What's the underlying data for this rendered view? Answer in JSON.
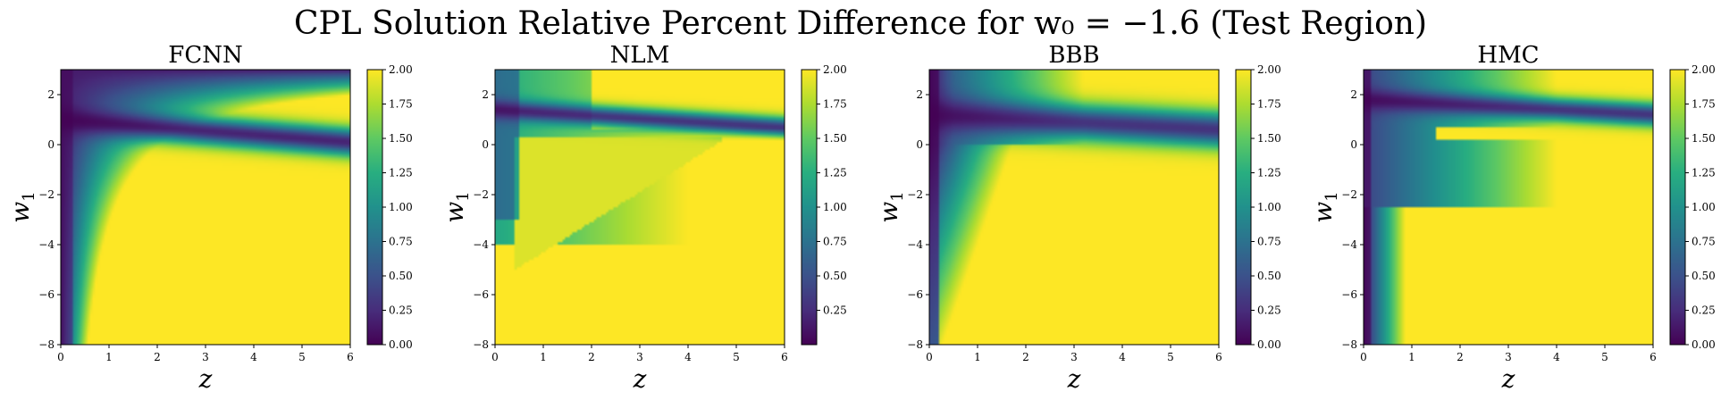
{
  "figure": {
    "suptitle": "CPL Solution Relative Percent Difference for w₀ = −1.6 (Test Region)"
  },
  "chart_data": [
    {
      "type": "heatmap",
      "title": "FCNN",
      "xlabel": "z",
      "ylabel": "w",
      "ylabel_sub": "1",
      "xlim": [
        0,
        6
      ],
      "ylim": [
        -8,
        3
      ],
      "xticks": [
        "0",
        "1",
        "2",
        "3",
        "4",
        "5",
        "6"
      ],
      "yticks": [
        "2",
        "0",
        "−2",
        "−4",
        "−6",
        "−8"
      ],
      "colorbar": {
        "vmin": 0.0,
        "vmax": 2.0,
        "ticks": [
          "2.00",
          "1.75",
          "1.50",
          "1.25",
          "1.00",
          "0.75",
          "0.50",
          "0.25",
          "0.00"
        ]
      },
      "colormap": "viridis",
      "description_low_error_band_w1": 1.0
    },
    {
      "type": "heatmap",
      "title": "NLM",
      "xlabel": "z",
      "ylabel": "w",
      "ylabel_sub": "1",
      "xlim": [
        0,
        6
      ],
      "ylim": [
        -8,
        3
      ],
      "xticks": [
        "0",
        "1",
        "2",
        "3",
        "4",
        "5",
        "6"
      ],
      "yticks": [
        "2",
        "0",
        "−2",
        "−4",
        "−6",
        "−8"
      ],
      "colorbar": {
        "vmin": 0.0,
        "vmax": 2.0,
        "ticks": [
          "2.00",
          "1.75",
          "1.50",
          "1.25",
          "1.00",
          "0.75",
          "0.50",
          "0.25"
        ]
      },
      "colormap": "viridis"
    },
    {
      "type": "heatmap",
      "title": "BBB",
      "xlabel": "z",
      "ylabel": "w",
      "ylabel_sub": "1",
      "xlim": [
        0,
        6
      ],
      "ylim": [
        -8,
        3
      ],
      "xticks": [
        "0",
        "1",
        "2",
        "3",
        "4",
        "5",
        "6"
      ],
      "yticks": [
        "2",
        "0",
        "−2",
        "−4",
        "−6",
        "−8"
      ],
      "colorbar": {
        "vmin": 0.0,
        "vmax": 2.0,
        "ticks": [
          "2.00",
          "1.75",
          "1.50",
          "1.25",
          "1.00",
          "0.75",
          "0.50",
          "0.25",
          "0.00"
        ]
      },
      "colormap": "viridis"
    },
    {
      "type": "heatmap",
      "title": "HMC",
      "xlabel": "z",
      "ylabel": "w",
      "ylabel_sub": "1",
      "xlim": [
        0,
        6
      ],
      "ylim": [
        -8,
        3
      ],
      "xticks": [
        "0",
        "1",
        "2",
        "3",
        "4",
        "5",
        "6"
      ],
      "yticks": [
        "2",
        "0",
        "−2",
        "−4",
        "−6",
        "−8"
      ],
      "colorbar": {
        "vmin": 0.0,
        "vmax": 2.0,
        "ticks": [
          "2.00",
          "1.75",
          "1.50",
          "1.25",
          "1.00",
          "0.75",
          "0.50",
          "0.25",
          "0.00"
        ]
      },
      "colormap": "viridis"
    }
  ]
}
